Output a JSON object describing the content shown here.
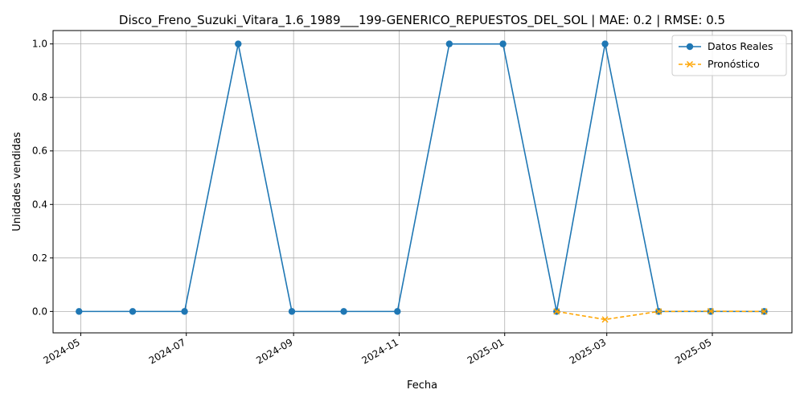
{
  "chart_data": {
    "type": "line",
    "title": "Disco_Freno_Suzuki_Vitara_1.6_1989___199-GENERICO_REPUESTOS_DEL_SOL | MAE: 0.2 | RMSE: 0.5",
    "xlabel": "Fecha",
    "ylabel": "Unidades vendidas",
    "ylim": [
      -0.08,
      1.05
    ],
    "xlim": [
      "2024-04-15",
      "2025-06-16"
    ],
    "grid": true,
    "legend_position": "top-right",
    "x_ticks": [
      "2024-05",
      "2024-07",
      "2024-09",
      "2024-11",
      "2025-01",
      "2025-03",
      "2025-05"
    ],
    "y_ticks": [
      "0.0",
      "0.2",
      "0.4",
      "0.6",
      "0.8",
      "1.0"
    ],
    "series": [
      {
        "name": "Datos Reales",
        "color": "#1f77b4",
        "style": "solid",
        "marker": "circle",
        "x": [
          "2024-04-30",
          "2024-05-31",
          "2024-06-30",
          "2024-07-31",
          "2024-08-31",
          "2024-09-30",
          "2024-10-31",
          "2024-11-30",
          "2024-12-31",
          "2025-01-31",
          "2025-02-28",
          "2025-03-31",
          "2025-04-30",
          "2025-05-31"
        ],
        "values": [
          0,
          0,
          0,
          1,
          0,
          0,
          0,
          1,
          1,
          0,
          1,
          0,
          0,
          0
        ]
      },
      {
        "name": "Pronóstico",
        "color": "#ffa500",
        "style": "dashed",
        "marker": "x",
        "x": [
          "2025-01-31",
          "2025-02-28",
          "2025-03-31",
          "2025-04-30",
          "2025-05-31"
        ],
        "values": [
          0.0,
          -0.03,
          0.0,
          0.001,
          0.0
        ]
      }
    ]
  }
}
